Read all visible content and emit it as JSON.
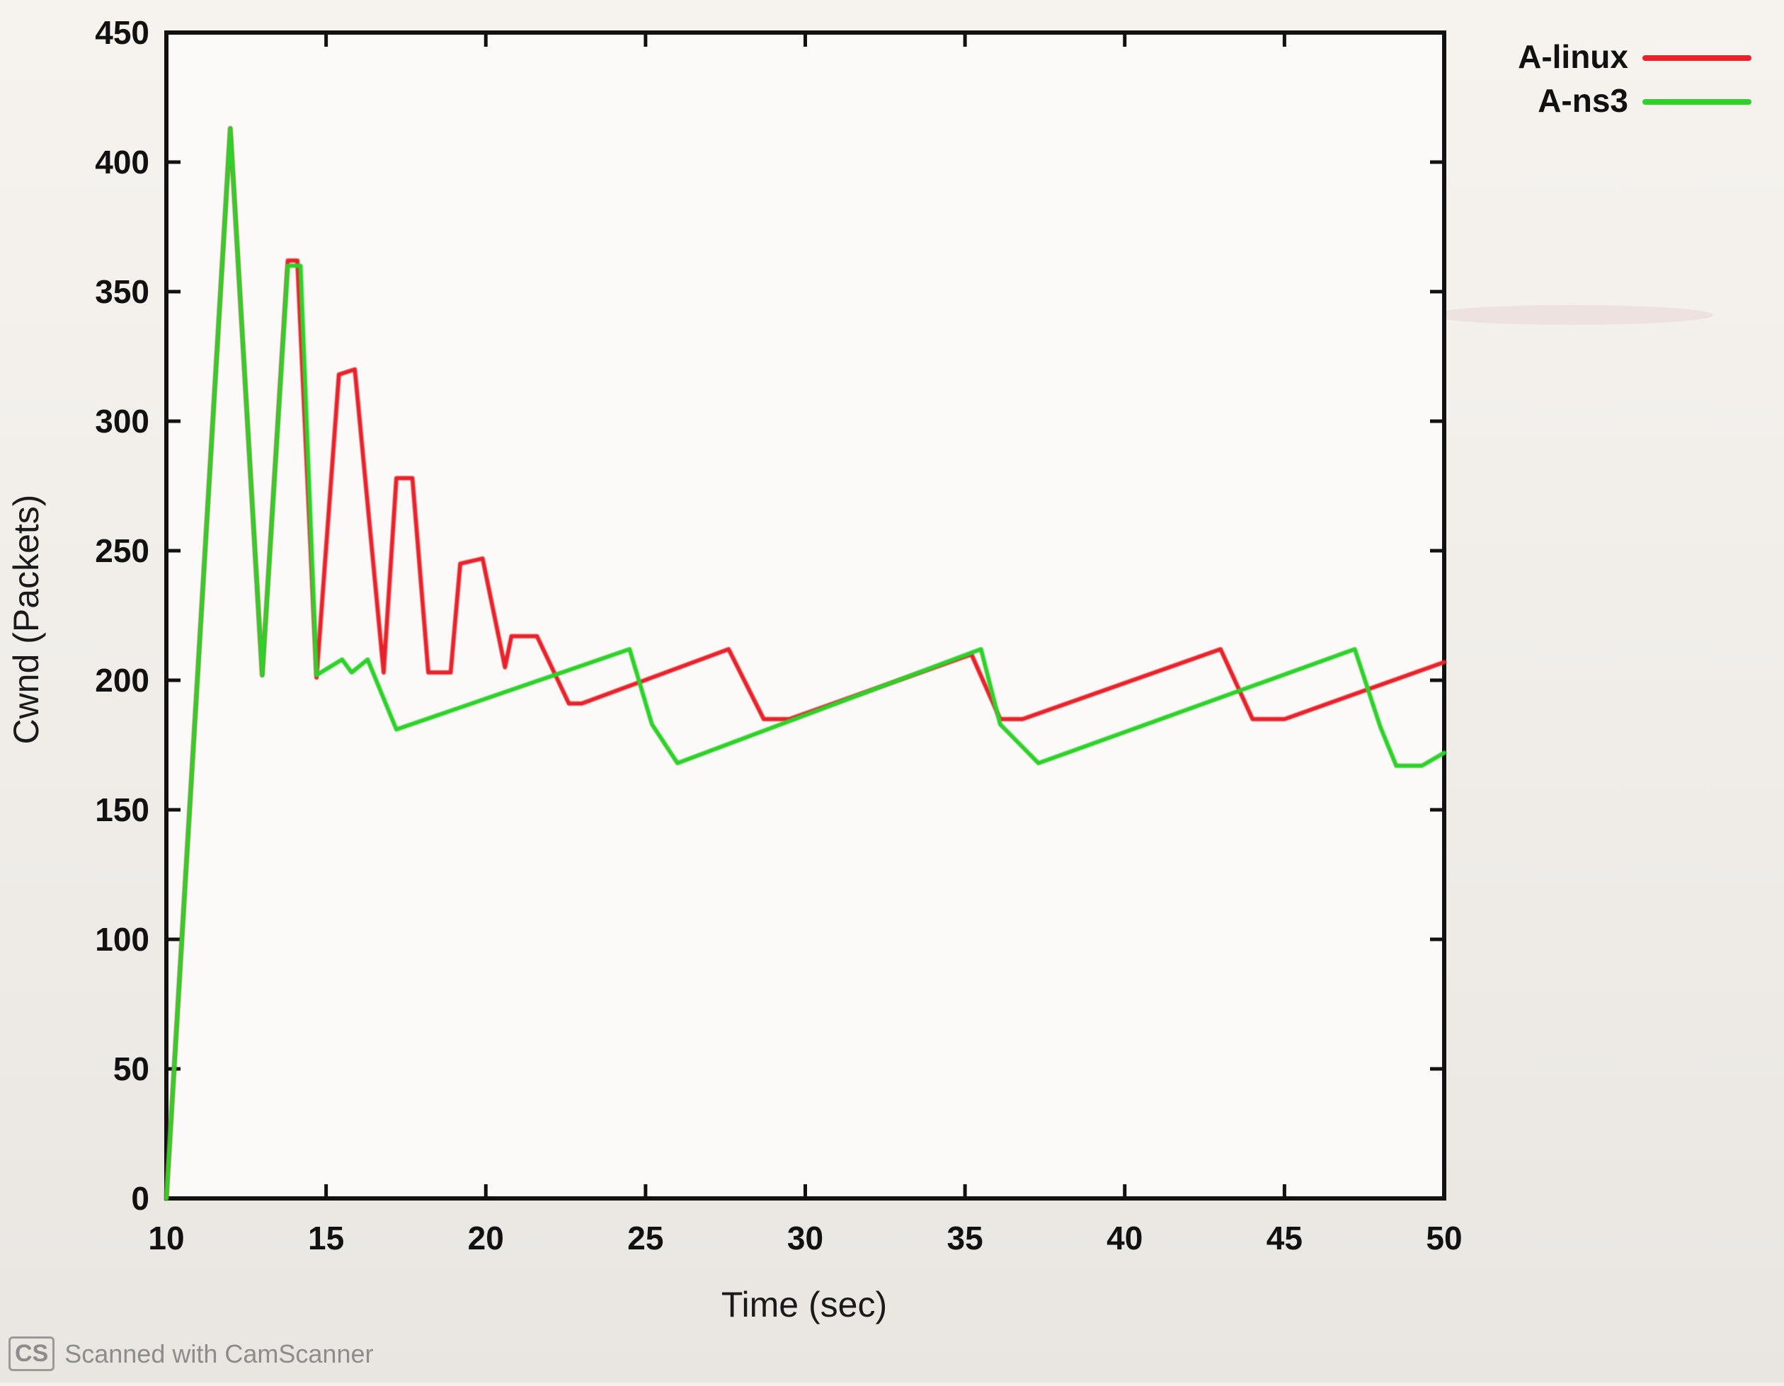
{
  "chart_data": {
    "type": "line",
    "title": "",
    "xlabel": "Time (sec)",
    "ylabel": "Cwnd (Packets)",
    "xlim": [
      10,
      50
    ],
    "ylim": [
      0,
      450
    ],
    "xticks": [
      10,
      15,
      20,
      25,
      30,
      35,
      40,
      45,
      50
    ],
    "yticks": [
      0,
      50,
      100,
      150,
      200,
      250,
      300,
      350,
      400,
      450
    ],
    "grid": false,
    "legend_position": "top-right-outside",
    "series": [
      {
        "name": "A-linux",
        "color": "#e8232b",
        "points": [
          [
            10.0,
            0
          ],
          [
            12.0,
            413
          ],
          [
            13.0,
            202
          ],
          [
            13.8,
            362
          ],
          [
            14.1,
            362
          ],
          [
            14.7,
            201
          ],
          [
            15.4,
            318
          ],
          [
            15.9,
            320
          ],
          [
            16.8,
            203
          ],
          [
            17.2,
            278
          ],
          [
            17.7,
            278
          ],
          [
            18.2,
            203
          ],
          [
            18.9,
            203
          ],
          [
            19.2,
            245
          ],
          [
            19.9,
            247
          ],
          [
            20.6,
            205
          ],
          [
            20.8,
            217
          ],
          [
            21.6,
            217
          ],
          [
            22.6,
            191
          ],
          [
            23.0,
            191
          ],
          [
            27.6,
            212
          ],
          [
            28.7,
            185
          ],
          [
            29.5,
            185
          ],
          [
            35.2,
            210
          ],
          [
            36.1,
            185
          ],
          [
            36.8,
            185
          ],
          [
            43.0,
            212
          ],
          [
            44.0,
            185
          ],
          [
            45.0,
            185
          ],
          [
            50.0,
            207
          ]
        ]
      },
      {
        "name": "A-ns3",
        "color": "#2fd02a",
        "points": [
          [
            10.0,
            0
          ],
          [
            12.0,
            413
          ],
          [
            13.0,
            202
          ],
          [
            13.8,
            360
          ],
          [
            14.2,
            360
          ],
          [
            14.7,
            202
          ],
          [
            15.5,
            208
          ],
          [
            15.8,
            203
          ],
          [
            16.3,
            208
          ],
          [
            17.2,
            181
          ],
          [
            24.5,
            212
          ],
          [
            25.2,
            183
          ],
          [
            26.0,
            168
          ],
          [
            35.5,
            212
          ],
          [
            36.1,
            183
          ],
          [
            37.3,
            168
          ],
          [
            47.2,
            212
          ],
          [
            48.0,
            182
          ],
          [
            48.5,
            167
          ],
          [
            49.3,
            167
          ],
          [
            50.0,
            172
          ]
        ]
      }
    ]
  },
  "watermark": {
    "badge": "CS",
    "text": "Scanned with CamScanner"
  }
}
